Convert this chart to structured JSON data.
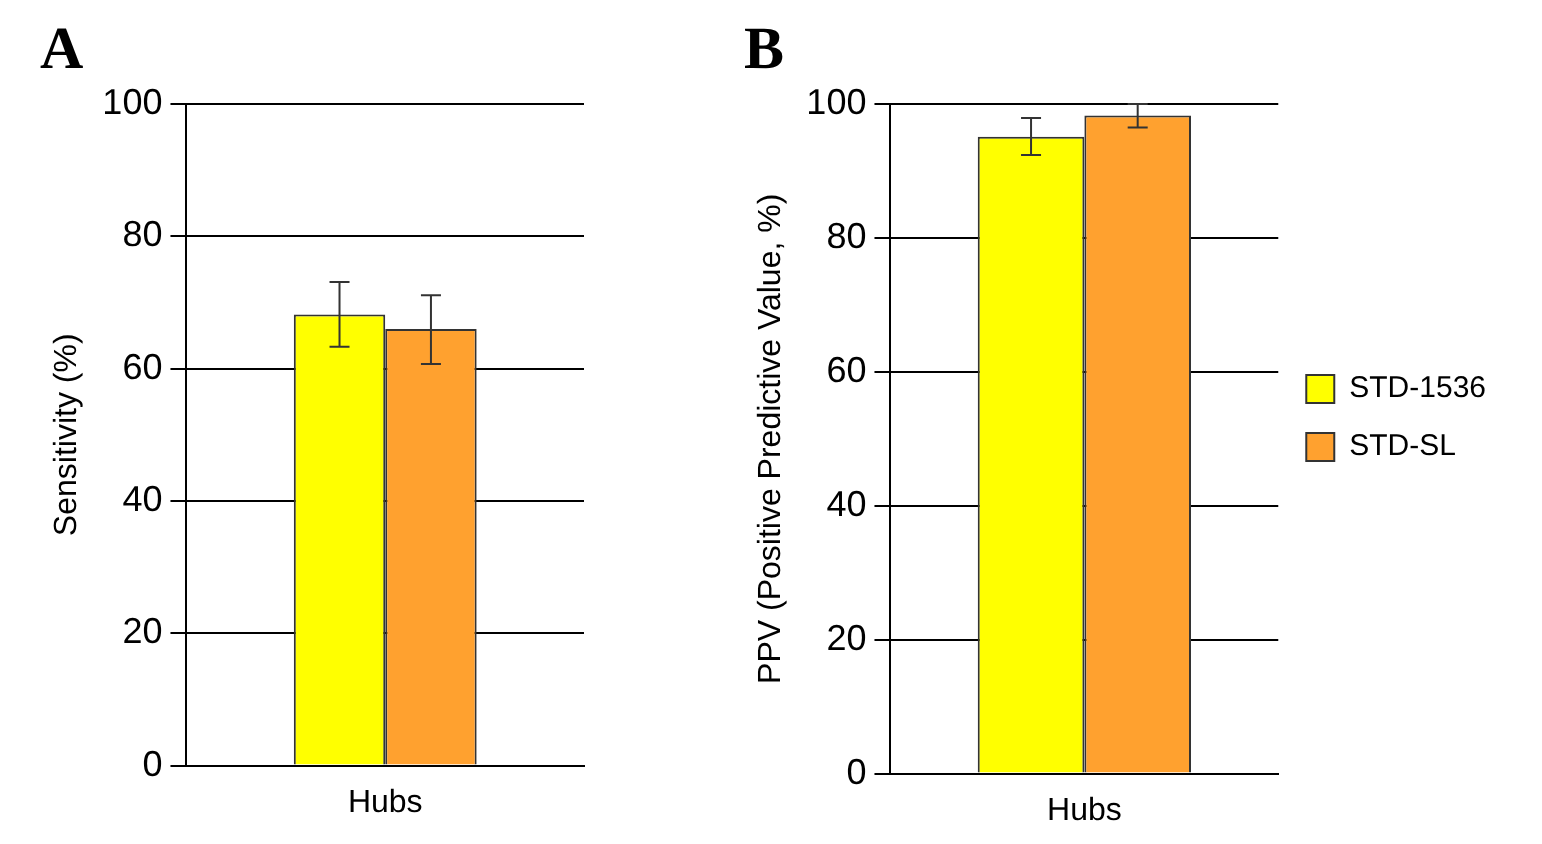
{
  "chart_data": [
    {
      "type": "bar",
      "title": "A",
      "ylabel": "Sensitivity (%)",
      "categories": [
        "Hubs"
      ],
      "series": [
        {
          "color": "#ffff00",
          "values": [
            68.2
          ],
          "errors": [
            [
              63.3,
              73.1
            ]
          ]
        },
        {
          "color": "#ffa12f",
          "values": [
            66
          ],
          "errors": [
            [
              60.7,
              71.1
            ]
          ]
        }
      ],
      "ylim": [
        0,
        100
      ],
      "yticks": [
        0,
        20,
        40,
        60,
        80,
        100
      ],
      "grid": "y",
      "legend": false
    },
    {
      "type": "bar",
      "title": "B",
      "ylabel": "PPV (Positive Predictive Value, %)",
      "categories": [
        "Hubs"
      ],
      "series": [
        {
          "name": "STD-1536",
          "color": "#ffff00",
          "values": [
            95.1
          ],
          "errors": [
            [
              92.4,
              97.9
            ]
          ]
        },
        {
          "name": "STD-SL",
          "color": "#ffa12f",
          "values": [
            98.3
          ],
          "errors": [
            [
              96.5,
              100
            ]
          ]
        }
      ],
      "ylim": [
        0,
        100
      ],
      "yticks": [
        0,
        20,
        40,
        60,
        80,
        100
      ],
      "grid": "y",
      "legend": "right"
    }
  ]
}
